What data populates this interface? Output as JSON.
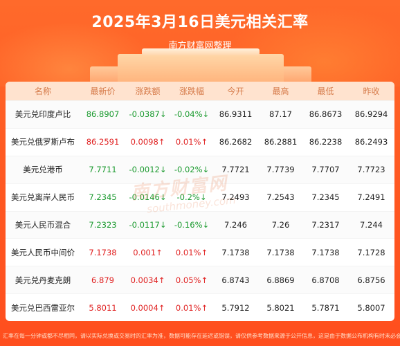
{
  "header": {
    "title": "2025年3月16日美元相关汇率",
    "subtitle": "南方财富网整理"
  },
  "table": {
    "columns": [
      "名称",
      "最新价",
      "涨跌额",
      "涨跌幅",
      "今开",
      "最高",
      "最低",
      "昨收"
    ],
    "rows": [
      {
        "name": "美元兑印度卢比",
        "latest": "86.8907",
        "change": "-0.0387↓",
        "pct": "-0.04%↓",
        "open": "86.9311",
        "high": "87.17",
        "low": "86.8673",
        "prev": "86.9294",
        "dir": "down"
      },
      {
        "name": "美元兑俄罗斯卢布",
        "latest": "86.2591",
        "change": "0.0098↑",
        "pct": "0.01%↑",
        "open": "86.2682",
        "high": "86.2881",
        "low": "86.2238",
        "prev": "86.2493",
        "dir": "up"
      },
      {
        "name": "美元兑港币",
        "latest": "7.7711",
        "change": "-0.0012↓",
        "pct": "-0.02%↓",
        "open": "7.7721",
        "high": "7.7739",
        "low": "7.7707",
        "prev": "7.7723",
        "dir": "down"
      },
      {
        "name": "美元兑离岸人民币",
        "latest": "7.2345",
        "change": "-0.0146↓",
        "pct": "-0.2%↓",
        "open": "7.2493",
        "high": "7.2543",
        "low": "7.2345",
        "prev": "7.2491",
        "dir": "down"
      },
      {
        "name": "美元人民币混合",
        "latest": "7.2323",
        "change": "-0.0117↓",
        "pct": "-0.16%↓",
        "open": "7.246",
        "high": "7.26",
        "low": "7.2317",
        "prev": "7.244",
        "dir": "down"
      },
      {
        "name": "美元人民币中间价",
        "latest": "7.1738",
        "change": "0.001↑",
        "pct": "0.01%↑",
        "open": "7.1738",
        "high": "7.1738",
        "low": "7.1738",
        "prev": "7.1728",
        "dir": "up"
      },
      {
        "name": "美元兑丹麦克朗",
        "latest": "6.879",
        "change": "0.0034↑",
        "pct": "0.05%↑",
        "open": "6.8743",
        "high": "6.8869",
        "low": "6.8708",
        "prev": "6.8756",
        "dir": "up"
      },
      {
        "name": "美元兑巴西雷亚尔",
        "latest": "5.8011",
        "change": "0.0004↑",
        "pct": "0.01%↑",
        "open": "5.7912",
        "high": "5.8021",
        "low": "5.7871",
        "prev": "5.8007",
        "dir": "up"
      }
    ]
  },
  "watermark": {
    "line1": "南方财富网",
    "line2": "southmoney.com"
  },
  "footer": {
    "disclaimer": "汇率在每一分钟或都不尽相同，请以实际兑换或交易时的汇率为准，数据可能存在延迟或错误，请仅供参考数据来源于公开信息，这是由于数据公布机构有时未必会推行时加所导致，请以实际为准。"
  },
  "colors": {
    "up": "#e02020",
    "down": "#1a9a2e",
    "background": "#ff5a22",
    "header_row": "#ffe3cf"
  }
}
